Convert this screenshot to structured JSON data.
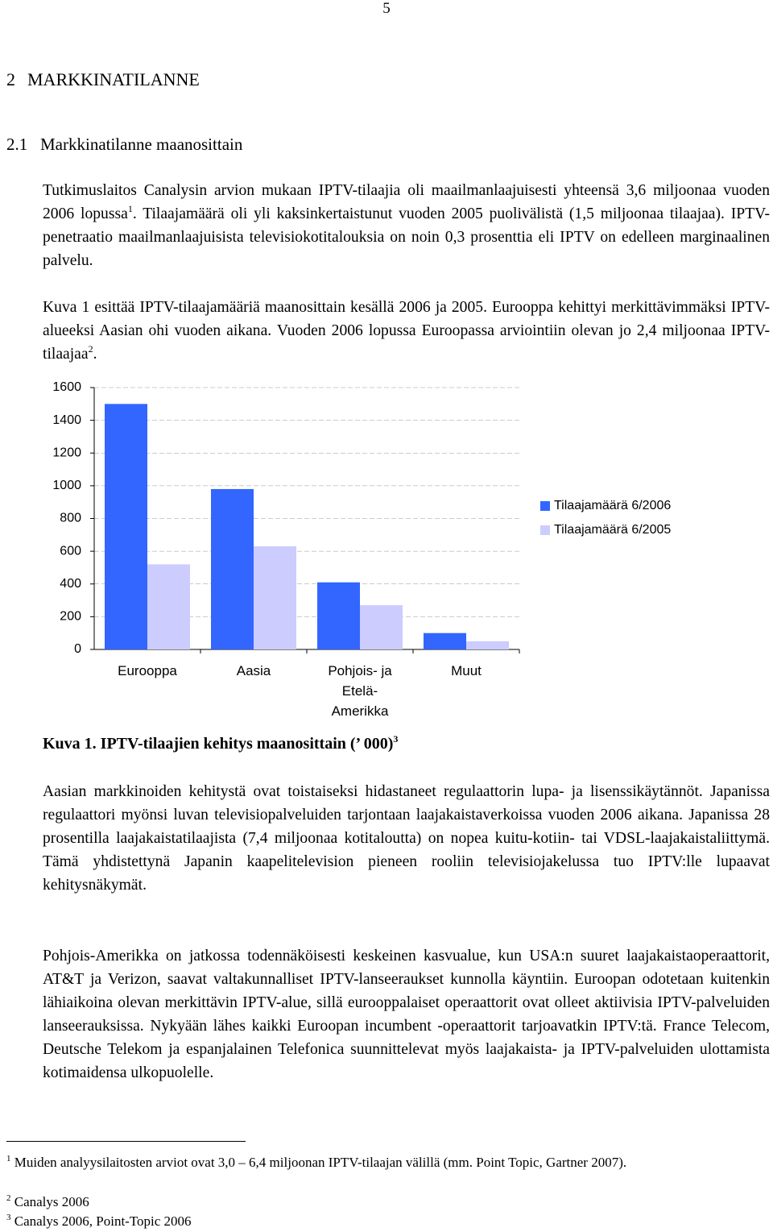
{
  "page_number": "5",
  "heading": {
    "number": "2",
    "title": "MARKKINATILANNE"
  },
  "subheading": {
    "number": "2.1",
    "title": "Markkinatilanne maanosittain"
  },
  "paragraphs": [
    {
      "before": "Tutkimuslaitos Canalysin arvion mukaan IPTV-tilaajia oli maailmanlaajuisesti yhteensä 3,6 miljoonaa vuoden 2006 lopussa",
      "note": "1",
      "after": ". Tilaajamäärä oli yli kaksinkertaistunut vuoden 2005 puolivälistä (1,5 miljoonaa tilaajaa). IPTV-penetraatio maailmanlaajuisista televisiokotitalouksia on noin 0,3 prosenttia eli IPTV on edelleen marginaalinen palvelu."
    },
    {
      "before": "Kuva 1 esittää IPTV-tilaajamääriä maanosittain kesällä 2006 ja 2005. Eurooppa kehittyi merkittävimmäksi IPTV-alueeksi Aasian ohi vuoden aikana. Vuoden 2006 lopussa Euroopassa arviointiin olevan jo 2,4 miljoonaa IPTV-tilaajaa",
      "note": "2",
      "after": "."
    },
    {
      "text": "Aasian markkinoiden kehitystä ovat toistaiseksi hidastaneet regulaattorin lupa- ja lisenssikäytännöt. Japanissa regulaattori myönsi luvan televisiopalveluiden tarjontaan laajakaistaverkoissa vuoden 2006 aikana. Japanissa 28 prosentilla laajakaistatilaajista (7,4 miljoonaa kotitaloutta) on nopea kuitu-kotiin- tai VDSL-laajakaistaliittymä. Tämä yhdistettynä Japanin kaapelitelevision pieneen rooliin televisiojakelussa tuo IPTV:lle lupaavat kehitysnäkymät."
    },
    {
      "text": "Pohjois-Amerikka on jatkossa todennäköisesti keskeinen kasvualue, kun USA:n suuret laajakaistaoperaattorit, AT&T ja Verizon, saavat valtakunnalliset IPTV-lanseeraukset kunnolla käyntiin. Euroopan odotetaan kuitenkin lähiaikoina olevan merkittävin IPTV-alue, sillä eurooppalaiset operaattorit ovat olleet aktiivisia IPTV-palveluiden lanseerauksissa. Nykyään lähes kaikki Euroopan incumbent -operaattorit tarjoavatkin IPTV:tä. France Telecom, Deutsche Telekom ja espanjalainen Telefonica suunnittelevat myös laajakaista- ja IPTV-palveluiden ulottamista kotimaidensa ulkopuolelle."
    }
  ],
  "caption": {
    "text": "Kuva 1. IPTV-tilaajien kehitys maanosittain (’ 000)",
    "note": "3"
  },
  "footnotes": [
    {
      "mark": "1",
      "text": "Muiden analyysilaitosten arviot ovat 3,0 – 6,4 miljoonan IPTV-tilaajan välillä (mm. Point Topic, Gartner 2007)."
    },
    {
      "mark": "2",
      "text": "Canalys 2006"
    },
    {
      "mark": "3",
      "text": "Canalys 2006, Point-Topic 2006"
    }
  ],
  "chart_data": {
    "type": "bar",
    "categories": [
      "Eurooppa",
      "Aasia",
      "Pohjois- ja Etelä-Amerikka",
      "Muut"
    ],
    "series": [
      {
        "name": "Tilaajamäärä 6/2006",
        "color": "#3366ff",
        "values": [
          1500,
          980,
          410,
          100
        ]
      },
      {
        "name": "Tilaajamäärä 6/2005",
        "color": "#ccccff",
        "values": [
          520,
          630,
          270,
          50
        ]
      }
    ],
    "ylim": [
      0,
      1600
    ],
    "yticks": [
      0,
      200,
      400,
      600,
      800,
      1000,
      1200,
      1400,
      1600
    ],
    "grid": true,
    "legend": "right"
  }
}
